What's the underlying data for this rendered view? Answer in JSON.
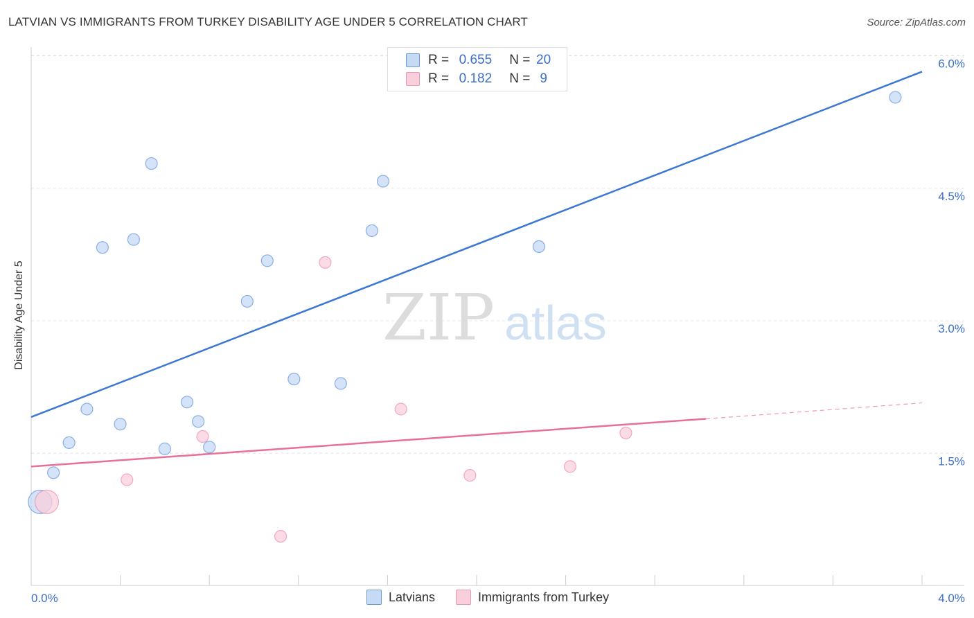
{
  "header": {
    "title": "LATVIAN VS IMMIGRANTS FROM TURKEY DISABILITY AGE UNDER 5 CORRELATION CHART",
    "source": "Source: ZipAtlas.com"
  },
  "watermark": {
    "zip": "ZIP",
    "atlas": "atlas"
  },
  "legend": {
    "rows": [
      {
        "r_label": "R =",
        "r_value": "0.655",
        "n_label": "N =",
        "n_value": "20",
        "color": "#b8d4f5"
      },
      {
        "r_label": "R =",
        "r_value": "0.182",
        "n_label": "N =",
        "n_value": "9",
        "color": "#f9c8d6"
      }
    ]
  },
  "bottom_legend": {
    "items": [
      {
        "label": "Latvians",
        "color": "#b8d4f5"
      },
      {
        "label": "Immigrants from Turkey",
        "color": "#f9c8d6"
      }
    ]
  },
  "chart_data": {
    "type": "scatter",
    "title": "LATVIAN VS IMMIGRANTS FROM TURKEY DISABILITY AGE UNDER 5 CORRELATION CHART",
    "xlabel": "",
    "ylabel": "Disability Age Under 5",
    "xlim": [
      0.0,
      4.0
    ],
    "ylim": [
      0.0,
      6.2
    ],
    "x_tick_labels": [
      "0.0%",
      "4.0%"
    ],
    "y_ticks": [
      1.5,
      3.0,
      4.5,
      6.0
    ],
    "y_tick_labels": [
      "1.5%",
      "3.0%",
      "4.5%",
      "6.0%"
    ],
    "grid": true,
    "series": [
      {
        "name": "Latvians",
        "color": "#3b78d4",
        "fill": "#c5daf5",
        "points": [
          {
            "x": 0.04,
            "y": 0.95,
            "large": true
          },
          {
            "x": 0.1,
            "y": 1.28
          },
          {
            "x": 0.17,
            "y": 1.62
          },
          {
            "x": 0.25,
            "y": 2.0
          },
          {
            "x": 0.32,
            "y": 3.83
          },
          {
            "x": 0.4,
            "y": 1.83
          },
          {
            "x": 0.46,
            "y": 3.92
          },
          {
            "x": 0.54,
            "y": 4.78
          },
          {
            "x": 0.6,
            "y": 1.55
          },
          {
            "x": 0.7,
            "y": 2.08
          },
          {
            "x": 0.75,
            "y": 1.86
          },
          {
            "x": 0.8,
            "y": 1.57
          },
          {
            "x": 0.97,
            "y": 3.22
          },
          {
            "x": 1.06,
            "y": 3.68
          },
          {
            "x": 1.18,
            "y": 2.34
          },
          {
            "x": 1.39,
            "y": 2.29
          },
          {
            "x": 1.53,
            "y": 4.02
          },
          {
            "x": 1.58,
            "y": 4.58
          },
          {
            "x": 2.28,
            "y": 3.84
          },
          {
            "x": 3.88,
            "y": 5.53
          }
        ],
        "trend": {
          "x0": 0.0,
          "y0": 1.91,
          "x1": 4.0,
          "y1": 5.82
        }
      },
      {
        "name": "Immigrants from Turkey",
        "color": "#e86f96",
        "fill": "#f9cfdc",
        "points": [
          {
            "x": 0.07,
            "y": 0.95,
            "large": true
          },
          {
            "x": 0.43,
            "y": 1.2
          },
          {
            "x": 0.77,
            "y": 1.69
          },
          {
            "x": 1.12,
            "y": 0.56
          },
          {
            "x": 1.32,
            "y": 3.66
          },
          {
            "x": 1.66,
            "y": 2.0
          },
          {
            "x": 1.97,
            "y": 1.25
          },
          {
            "x": 2.42,
            "y": 1.35
          },
          {
            "x": 2.67,
            "y": 1.73
          }
        ],
        "trend": {
          "x0": 0.0,
          "y0": 1.35,
          "x1": 3.03,
          "y1": 1.89
        },
        "trend_dashed": {
          "x0": 3.03,
          "y0": 1.89,
          "x1": 4.0,
          "y1": 2.07
        }
      }
    ]
  }
}
